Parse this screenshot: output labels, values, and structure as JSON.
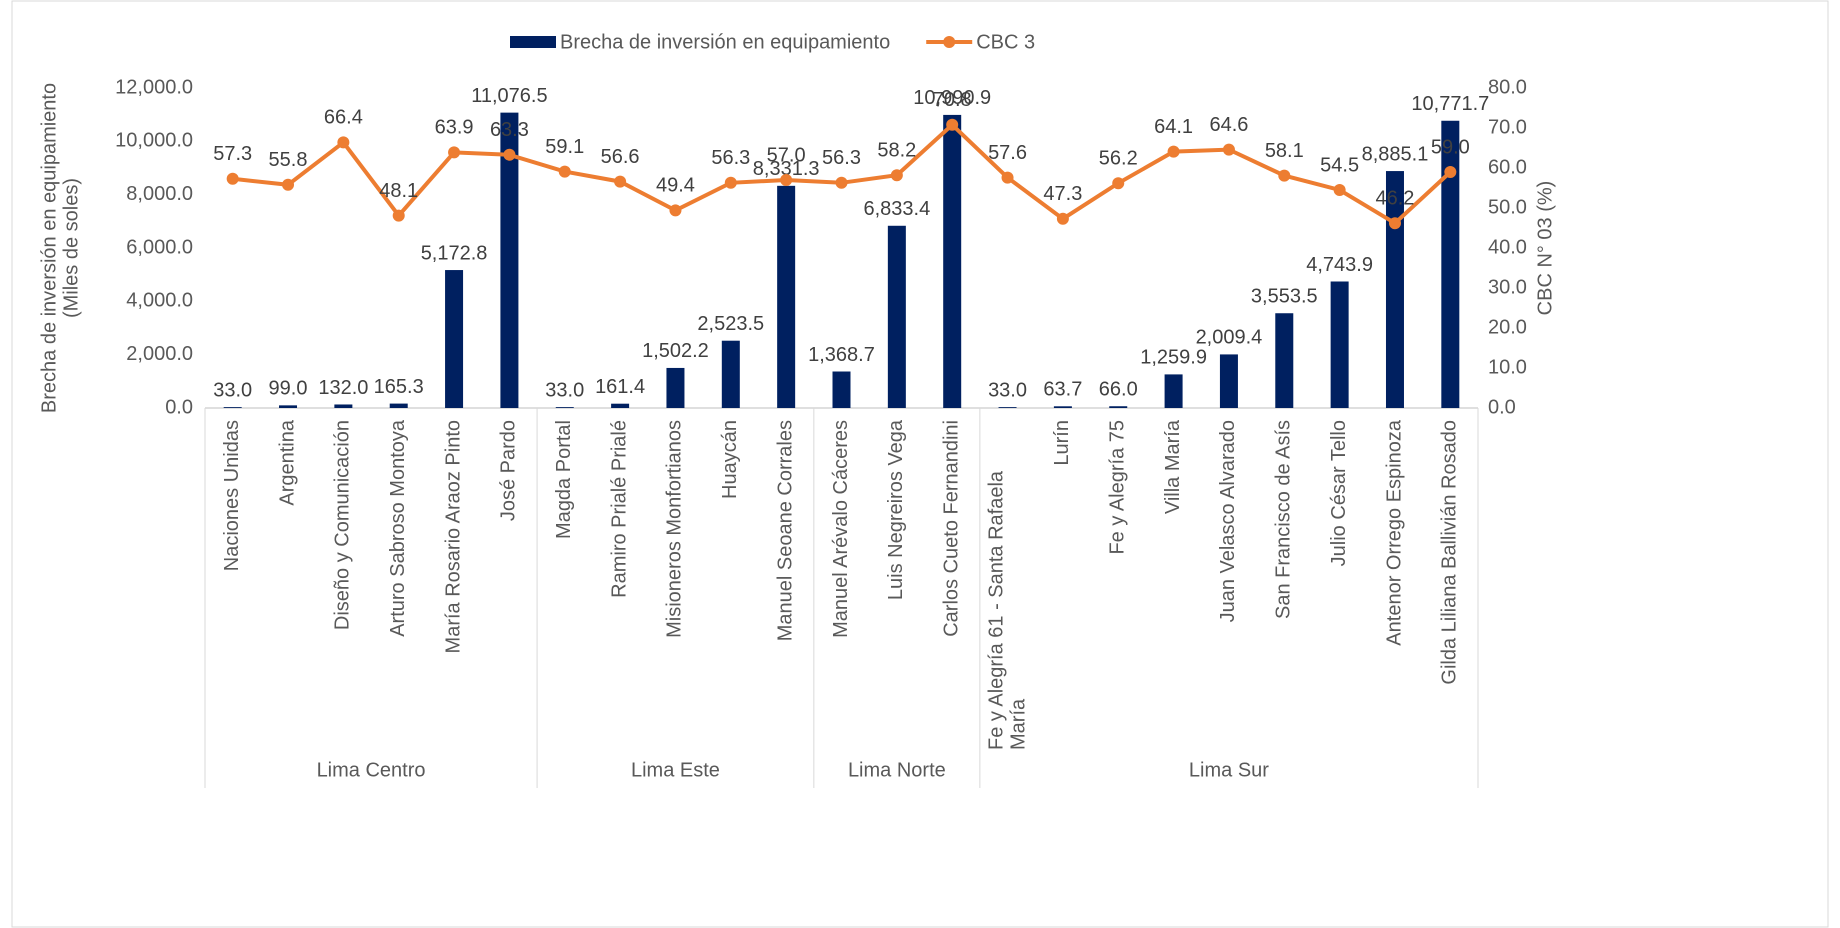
{
  "chart_data": {
    "type": "bar_line",
    "ylabel": [
      "Brecha de inversión en equipamiento",
      "(Miles de soles)"
    ],
    "y2label": "CBC N° 03 (%)",
    "categories": [
      "Naciones Unidas",
      "Argentina",
      "Diseño y Comunicación",
      "Arturo Sabroso Montoya",
      "María Rosario Araoz Pinto",
      "José Pardo",
      "Magda Portal",
      "Ramiro Prialé Prialé",
      "Misioneros Monfortianos",
      "Huaycán",
      "Manuel Seoane Corrales",
      "Manuel Arévalo Cáceres",
      "Luis Negreiros Vega",
      "Carlos Cueto Fernandini",
      "Fe y Alegría 61 - Santa Rafaela María",
      "Lurín",
      "Fe y Alegría 75",
      "Villa María",
      "Juan Velasco Alvarado",
      "San Francisco de Asís",
      "Julio César Tello",
      "Antenor Orrego Espinoza",
      "Gilda Liliana Ballivián Rosado"
    ],
    "category_groups": [
      "Lima Centro",
      "Lima Centro",
      "Lima Centro",
      "Lima Centro",
      "Lima Centro",
      "Lima Centro",
      "Lima Este",
      "Lima Este",
      "Lima Este",
      "Lima Este",
      "Lima Este",
      "Lima Norte",
      "Lima Norte",
      "Lima Norte",
      "Lima Sur",
      "Lima Sur",
      "Lima Sur",
      "Lima Sur",
      "Lima Sur",
      "Lima Sur",
      "Lima Sur",
      "Lima Sur",
      "Lima Sur"
    ],
    "series": [
      {
        "name": "Brecha de inversión en equipamiento",
        "type": "bar",
        "color": "#002060",
        "values": [
          33.0,
          99.0,
          132.0,
          165.3,
          5172.8,
          11076.5,
          33.0,
          161.4,
          1502.2,
          2523.5,
          8331.3,
          1368.7,
          6833.4,
          10990.9,
          33.0,
          63.7,
          66.0,
          1259.9,
          2009.4,
          3553.5,
          4743.9,
          8885.1,
          10771.7
        ],
        "value_labels": [
          "33.0",
          "99.0",
          "132.0",
          "165.3",
          "5,172.8",
          "11,076.5",
          "33.0",
          "161.4",
          "1,502.2",
          "2,523.5",
          "8,331.3",
          "1,368.7",
          "6,833.4",
          "10,990.9",
          "33.0",
          "63.7",
          "66.0",
          "1,259.9",
          "2,009.4",
          "3,553.5",
          "4,743.9",
          "8,885.1",
          "10,771.7"
        ]
      },
      {
        "name": "CBC 3",
        "type": "line",
        "axis": "y2",
        "color": "#ED7D31",
        "values": [
          57.3,
          55.8,
          66.4,
          48.1,
          63.9,
          63.3,
          59.1,
          56.6,
          49.4,
          56.3,
          57.0,
          56.3,
          58.2,
          70.8,
          57.6,
          47.3,
          56.2,
          64.1,
          64.6,
          58.1,
          54.5,
          46.2,
          59.0
        ],
        "value_labels": [
          "57.3",
          "55.8",
          "66.4",
          "48.1",
          "63.9",
          "63.3",
          "59.1",
          "56.6",
          "49.4",
          "56.3",
          "57.0",
          "56.3",
          "58.2",
          "70.8",
          "57.6",
          "47.3",
          "56.2",
          "64.1",
          "64.6",
          "58.1",
          "54.5",
          "46.2",
          "59.0"
        ]
      }
    ],
    "ylim": [
      0,
      12000
    ],
    "yticks": [
      {
        "value": 0,
        "label": "0.0"
      },
      {
        "value": 2000,
        "label": "2,000.0"
      },
      {
        "value": 4000,
        "label": "4,000.0"
      },
      {
        "value": 6000,
        "label": "6,000.0"
      },
      {
        "value": 8000,
        "label": "8,000.0"
      },
      {
        "value": 10000,
        "label": "10,000.0"
      },
      {
        "value": 12000,
        "label": "12,000.0"
      }
    ],
    "y2lim": [
      0,
      80
    ],
    "y2ticks": [
      {
        "value": 0,
        "label": "0.0"
      },
      {
        "value": 10,
        "label": "10.0"
      },
      {
        "value": 20,
        "label": "20.0"
      },
      {
        "value": 30,
        "label": "30.0"
      },
      {
        "value": 40,
        "label": "40.0"
      },
      {
        "value": 50,
        "label": "50.0"
      },
      {
        "value": 60,
        "label": "60.0"
      },
      {
        "value": 70,
        "label": "70.0"
      },
      {
        "value": 80,
        "label": "80.0"
      }
    ],
    "legend": "top"
  }
}
